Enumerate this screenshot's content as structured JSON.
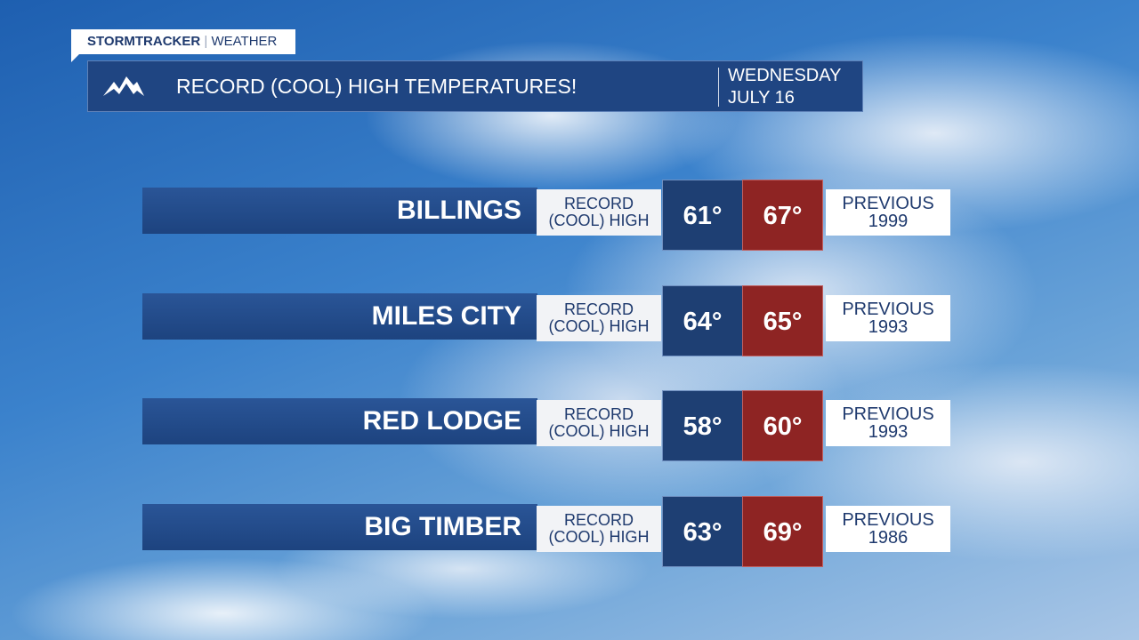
{
  "header": {
    "brand": "STORMTRACKER",
    "brand_section": "WEATHER",
    "title": "RECORD (COOL) HIGH TEMPERATURES!",
    "date_lines": [
      "WEDNESDAY",
      "JULY 16"
    ]
  },
  "rows": [
    {
      "city": "BILLINGS",
      "label_lines": [
        "RECORD",
        "(COOL) HIGH"
      ],
      "new_record": "61°",
      "previous_record": "67°",
      "previous_lines": [
        "PREVIOUS",
        "1999"
      ]
    },
    {
      "city": "MILES CITY",
      "label_lines": [
        "RECORD",
        "(COOL) HIGH"
      ],
      "new_record": "64°",
      "previous_record": "65°",
      "previous_lines": [
        "PREVIOUS",
        "1993"
      ]
    },
    {
      "city": "RED LODGE",
      "label_lines": [
        "RECORD",
        "(COOL) HIGH"
      ],
      "new_record": "58°",
      "previous_record": "60°",
      "previous_lines": [
        "PREVIOUS",
        "1993"
      ]
    },
    {
      "city": "BIG TIMBER",
      "label_lines": [
        "RECORD",
        "(COOL) HIGH"
      ],
      "new_record": "63°",
      "previous_record": "69°",
      "previous_lines": [
        "PREVIOUS",
        "1986"
      ]
    }
  ]
}
